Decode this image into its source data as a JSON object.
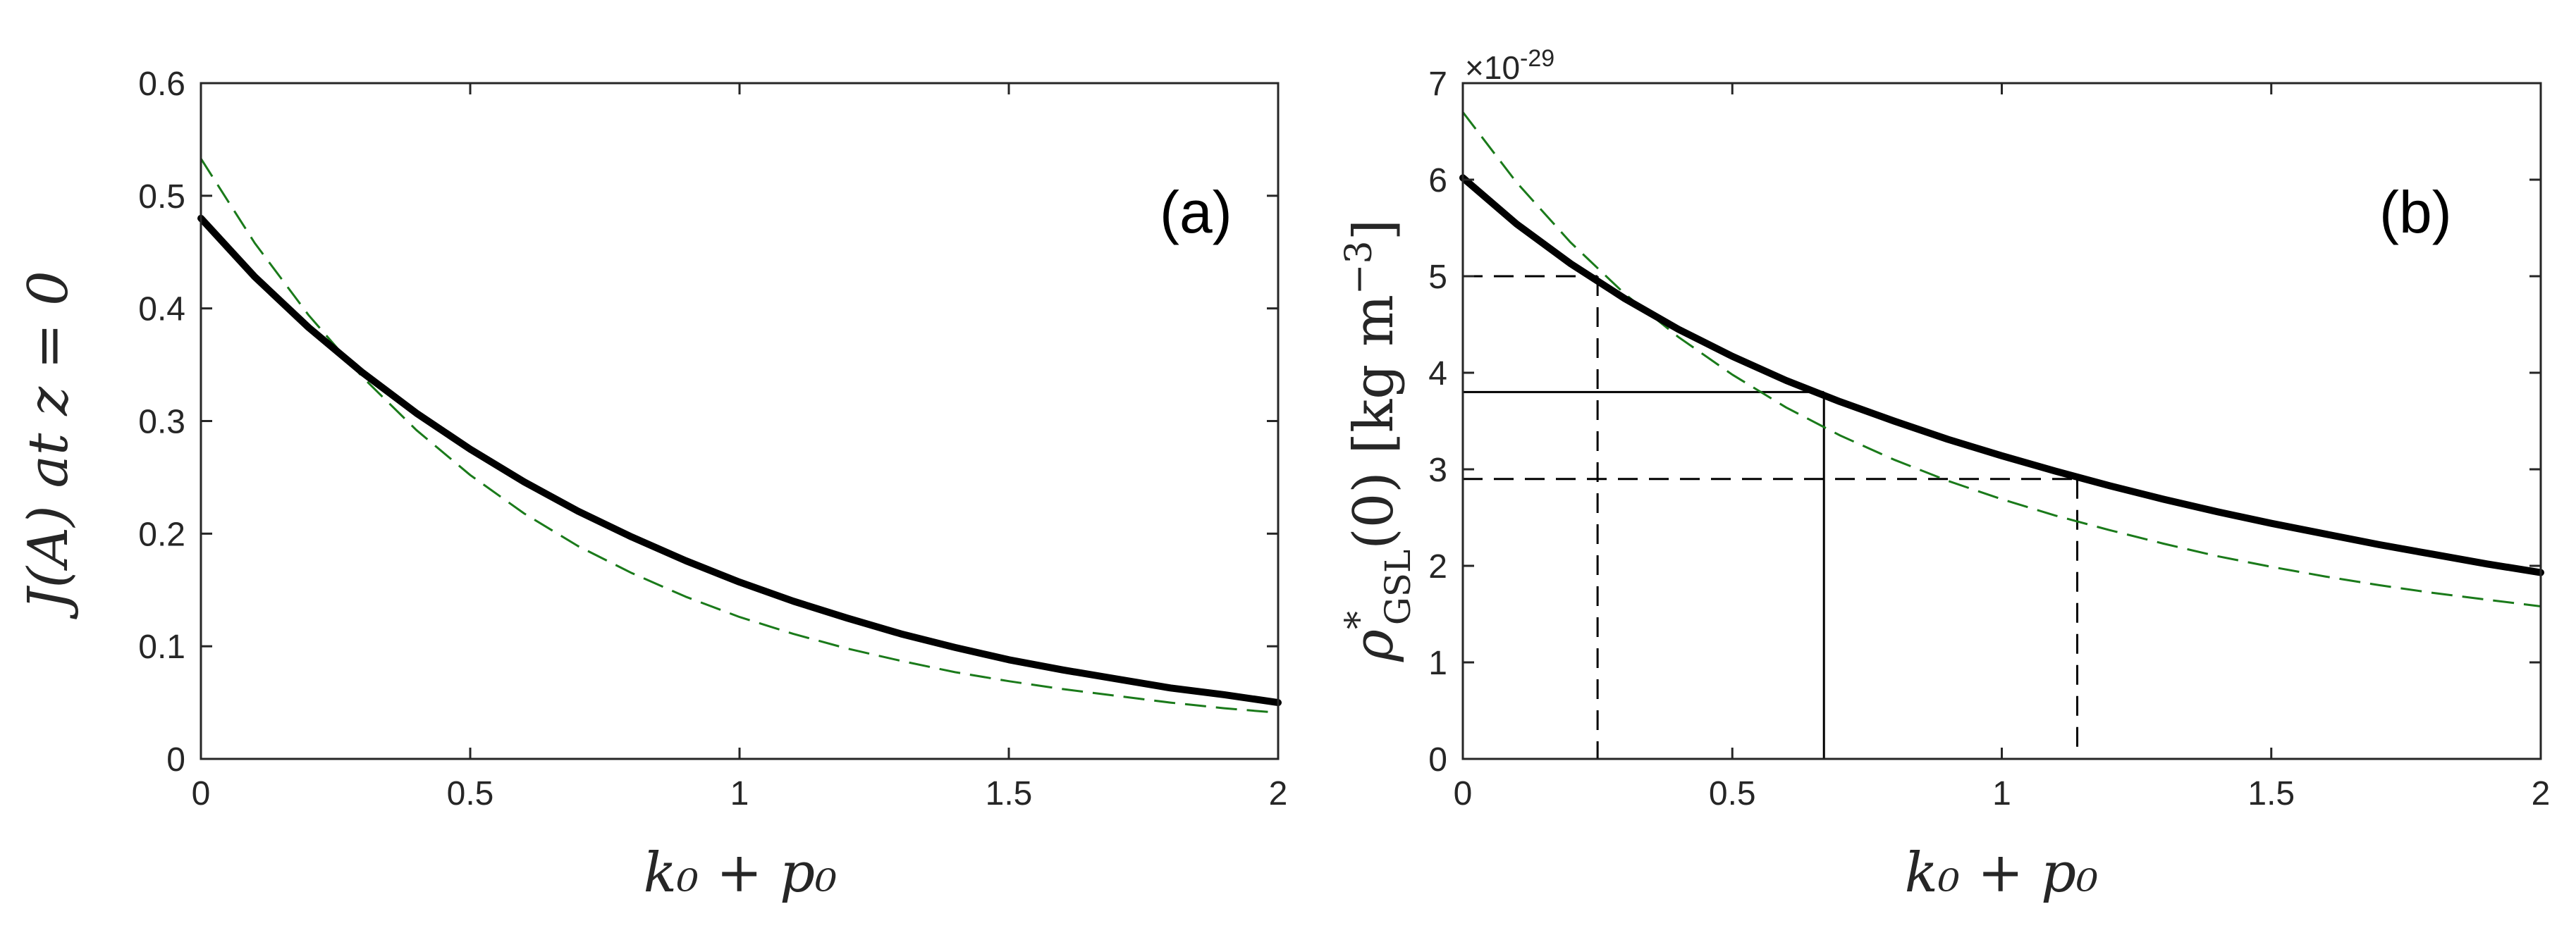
{
  "chart_data": [
    {
      "type": "line",
      "panel_label": "(a)",
      "xlabel": "k₀ + p₀",
      "ylabel": "J(A) at z = 0",
      "xlim": [
        0,
        2
      ],
      "ylim": [
        0,
        0.6
      ],
      "xticks": [
        0,
        0.5,
        1,
        1.5,
        2
      ],
      "xtick_labels": [
        "0",
        "0.5",
        "1",
        "1.5",
        "2"
      ],
      "yticks": [
        0,
        0.1,
        0.2,
        0.3,
        0.4,
        0.5,
        0.6
      ],
      "ytick_labels": [
        "0",
        "0.1",
        "0.2",
        "0.3",
        "0.4",
        "0.5",
        "0.6"
      ],
      "grid": false,
      "series": [
        {
          "style": "thick-solid",
          "color": "#000000",
          "x": [
            0,
            0.1,
            0.2,
            0.3,
            0.4,
            0.5,
            0.6,
            0.7,
            0.8,
            0.9,
            1.0,
            1.1,
            1.2,
            1.3,
            1.4,
            1.5,
            1.6,
            1.7,
            1.8,
            1.9,
            2.0
          ],
          "y": [
            0.48,
            0.428,
            0.383,
            0.343,
            0.307,
            0.275,
            0.246,
            0.22,
            0.197,
            0.176,
            0.157,
            0.14,
            0.125,
            0.111,
            0.099,
            0.088,
            0.079,
            0.071,
            0.063,
            0.057,
            0.05
          ]
        },
        {
          "style": "dashed",
          "color": "#1a7a1a",
          "x": [
            0,
            0.1,
            0.2,
            0.3,
            0.4,
            0.5,
            0.6,
            0.7,
            0.8,
            0.9,
            1.0,
            1.1,
            1.2,
            1.3,
            1.4,
            1.5,
            1.6,
            1.7,
            1.8,
            1.9,
            2.0
          ],
          "y": [
            0.533,
            0.458,
            0.394,
            0.339,
            0.292,
            0.252,
            0.218,
            0.189,
            0.165,
            0.144,
            0.126,
            0.111,
            0.098,
            0.087,
            0.077,
            0.069,
            0.062,
            0.056,
            0.05,
            0.045,
            0.041
          ]
        }
      ]
    },
    {
      "type": "line",
      "panel_label": "(b)",
      "xlabel": "k₀ + p₀",
      "ylabel": "ρ*GSL(0)  [kg m⁻³]",
      "ylabel_parts": {
        "base": "ρ",
        "sup": "*",
        "sub": "GSL",
        "rest": "(0)  [kg m",
        "exp": "−3",
        "close": "]"
      },
      "exponent_label": "×10",
      "exponent_value": "-29",
      "xlim": [
        0,
        2
      ],
      "ylim": [
        0,
        7
      ],
      "xticks": [
        0,
        0.5,
        1,
        1.5,
        2
      ],
      "xtick_labels": [
        "0",
        "0.5",
        "1",
        "1.5",
        "2"
      ],
      "yticks": [
        0,
        1,
        2,
        3,
        4,
        5,
        6,
        7
      ],
      "ytick_labels": [
        "0",
        "1",
        "2",
        "3",
        "4",
        "5",
        "6",
        "7"
      ],
      "grid": false,
      "series": [
        {
          "style": "thick-solid",
          "color": "#000000",
          "x": [
            0,
            0.1,
            0.2,
            0.3,
            0.4,
            0.5,
            0.6,
            0.7,
            0.8,
            0.9,
            1.0,
            1.1,
            1.2,
            1.3,
            1.4,
            1.5,
            1.6,
            1.7,
            1.8,
            1.9,
            2.0
          ],
          "y": [
            6.02,
            5.54,
            5.13,
            4.77,
            4.45,
            4.17,
            3.92,
            3.7,
            3.5,
            3.31,
            3.14,
            2.98,
            2.83,
            2.69,
            2.56,
            2.44,
            2.33,
            2.22,
            2.12,
            2.02,
            1.93
          ]
        },
        {
          "style": "dashed",
          "color": "#1a7a1a",
          "x": [
            0,
            0.1,
            0.2,
            0.3,
            0.4,
            0.5,
            0.6,
            0.7,
            0.8,
            0.9,
            1.0,
            1.1,
            1.2,
            1.3,
            1.4,
            1.5,
            1.6,
            1.7,
            1.8,
            1.9,
            2.0
          ],
          "y": [
            6.7,
            5.97,
            5.35,
            4.82,
            4.37,
            3.98,
            3.64,
            3.35,
            3.1,
            2.88,
            2.69,
            2.52,
            2.37,
            2.23,
            2.1,
            1.99,
            1.89,
            1.8,
            1.72,
            1.65,
            1.58
          ]
        }
      ],
      "reference_lines": [
        {
          "style": "dashed",
          "x": 0.25,
          "y": 5.0
        },
        {
          "style": "solid",
          "x": 0.67,
          "y": 3.8
        },
        {
          "style": "dashed",
          "x": 1.14,
          "y": 2.9
        }
      ]
    }
  ]
}
